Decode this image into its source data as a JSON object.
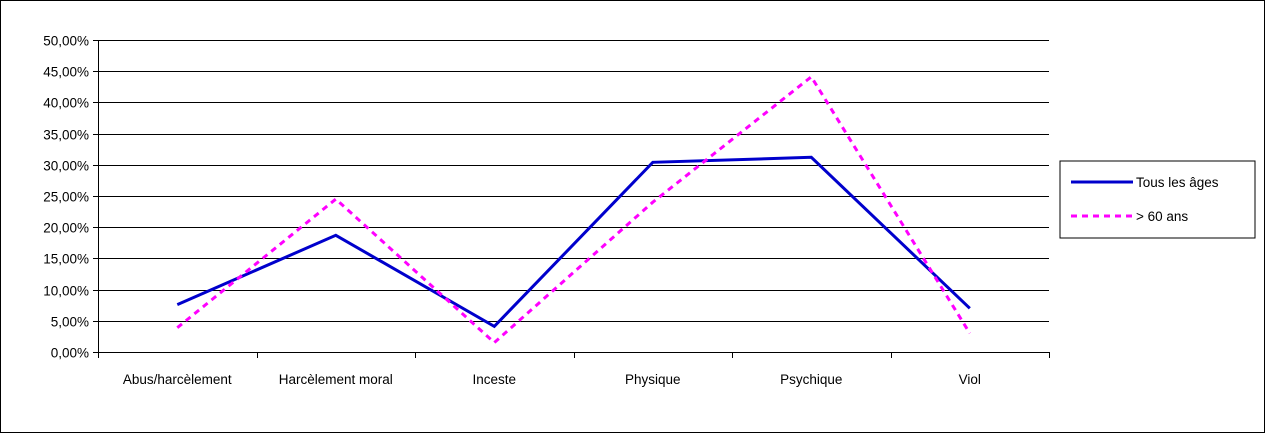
{
  "chart_data": {
    "type": "line",
    "title": "",
    "xlabel": "",
    "ylabel": "",
    "categories": [
      "Abus/harcèlement",
      "Harcèlement moral",
      "Inceste",
      "Physique",
      "Psychique",
      "Viol"
    ],
    "ylim": [
      0,
      50
    ],
    "y_ticks": [
      0,
      5,
      10,
      15,
      20,
      25,
      30,
      35,
      40,
      45,
      50
    ],
    "y_tick_labels": [
      "0,00%",
      "5,00%",
      "10,00%",
      "15,00%",
      "20,00%",
      "25,00%",
      "30,00%",
      "35,00%",
      "40,00%",
      "45,00%",
      "50,00%"
    ],
    "grid": true,
    "legend_position": "right",
    "series": [
      {
        "name": "Tous les âges",
        "values": [
          7.6,
          18.7,
          4.1,
          30.4,
          31.2,
          7.0
        ],
        "color": "#0000cc",
        "style": "solid"
      },
      {
        "name": "> 60 ans",
        "values": [
          3.9,
          24.5,
          1.5,
          24.0,
          44.1,
          3.0
        ],
        "color": "#ff00ff",
        "style": "dashed"
      }
    ]
  }
}
